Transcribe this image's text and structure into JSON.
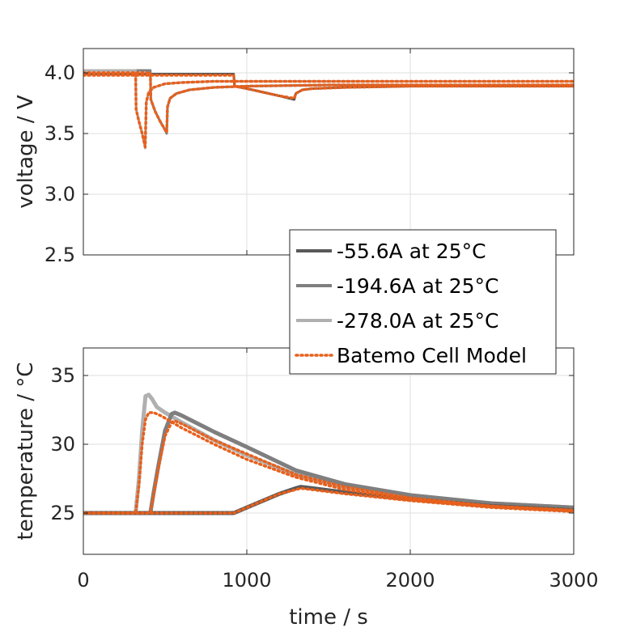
{
  "chart_data": [
    {
      "type": "line",
      "title": "",
      "xlabel": "",
      "ylabel": "voltage / V",
      "xlim": [
        0,
        3000
      ],
      "ylim": [
        2.5,
        4.2
      ],
      "yticks": [
        "2.5",
        "3.0",
        "3.5",
        "4.0"
      ],
      "ytick_values": [
        2.5,
        3.0,
        3.5,
        4.0
      ],
      "grid": true,
      "series": [
        {
          "name": "-55.6A at 25°C",
          "color": "#595959",
          "style": "solid",
          "x": [
            0,
            920,
            925,
            1000,
            1100,
            1200,
            1290,
            1300,
            1340,
            1400,
            1600,
            2000,
            3000
          ],
          "y": [
            3.99,
            3.99,
            3.89,
            3.87,
            3.84,
            3.81,
            3.78,
            3.83,
            3.86,
            3.87,
            3.88,
            3.89,
            3.89
          ]
        },
        {
          "name": "-194.6A at 25°C",
          "color": "#7f7f7f",
          "style": "solid",
          "x": [
            0,
            410,
            413,
            440,
            470,
            500,
            510,
            515,
            530,
            570,
            650,
            800,
            1000,
            1500,
            3000
          ],
          "y": [
            4.02,
            4.02,
            3.78,
            3.68,
            3.6,
            3.53,
            3.5,
            3.72,
            3.79,
            3.83,
            3.86,
            3.88,
            3.89,
            3.9,
            3.9
          ]
        },
        {
          "name": "-278.0A at 25°C",
          "color": "#b0b0b0",
          "style": "solid",
          "x": [
            0,
            320,
            323,
            340,
            360,
            375,
            378,
            385,
            400,
            430,
            500,
            600,
            800,
            1000,
            1500,
            3000
          ],
          "y": [
            4.02,
            4.02,
            3.7,
            3.6,
            3.5,
            3.4,
            3.38,
            3.76,
            3.84,
            3.88,
            3.91,
            3.92,
            3.93,
            3.93,
            3.93,
            3.93
          ]
        },
        {
          "name": "Batemo Cell Model",
          "color": "#e8601c",
          "style": "dotted",
          "x": [
            0,
            320,
            323,
            340,
            360,
            375,
            378,
            385,
            400,
            430,
            500,
            600,
            800,
            1000,
            1500,
            3000
          ],
          "y": [
            4.0,
            4.0,
            3.7,
            3.6,
            3.5,
            3.41,
            3.39,
            3.76,
            3.84,
            3.88,
            3.91,
            3.92,
            3.93,
            3.93,
            3.93,
            3.93
          ]
        },
        {
          "name": "",
          "color": "#e8601c",
          "style": "dotted",
          "x": [
            0,
            410,
            413,
            440,
            470,
            500,
            510,
            515,
            530,
            570,
            650,
            800,
            1000,
            1500,
            3000
          ],
          "y": [
            4.0,
            4.0,
            3.78,
            3.68,
            3.6,
            3.53,
            3.51,
            3.72,
            3.79,
            3.83,
            3.86,
            3.88,
            3.89,
            3.9,
            3.9
          ]
        },
        {
          "name": "",
          "color": "#e8601c",
          "style": "dotted",
          "x": [
            0,
            920,
            925,
            1000,
            1100,
            1200,
            1290,
            1300,
            1340,
            1400,
            1600,
            2000,
            3000
          ],
          "y": [
            3.98,
            3.98,
            3.89,
            3.87,
            3.84,
            3.81,
            3.79,
            3.83,
            3.86,
            3.87,
            3.88,
            3.89,
            3.89
          ]
        }
      ]
    },
    {
      "type": "line",
      "title": "",
      "xlabel": "time / s",
      "ylabel": "temperature / °C",
      "xlim": [
        0,
        3000
      ],
      "ylim": [
        22,
        37
      ],
      "xticks": [
        "0",
        "1000",
        "2000",
        "3000"
      ],
      "xtick_values": [
        0,
        1000,
        2000,
        3000
      ],
      "yticks": [
        "25",
        "30",
        "35"
      ],
      "ytick_values": [
        25,
        30,
        35
      ],
      "grid": true,
      "legend": {
        "placement": "center-right",
        "entries": [
          {
            "label": "-55.6A at 25°C",
            "color": "#595959",
            "style": "solid"
          },
          {
            "label": "-194.6A at 25°C",
            "color": "#7f7f7f",
            "style": "solid"
          },
          {
            "label": "-278.0A at 25°C",
            "color": "#b0b0b0",
            "style": "solid"
          },
          {
            "label": "Batemo Cell Model",
            "color": "#e8601c",
            "style": "dotted"
          }
        ]
      },
      "series": [
        {
          "name": "-278.0A at 25°C",
          "color": "#b0b0b0",
          "style": "solid",
          "x": [
            0,
            320,
            340,
            360,
            380,
            400,
            420,
            450,
            500,
            600,
            800,
            1000,
            1300,
            1600,
            2000,
            2500,
            3000
          ],
          "y": [
            25.0,
            25.0,
            27.5,
            31.0,
            33.5,
            33.6,
            33.3,
            32.7,
            32.3,
            31.6,
            30.3,
            29.2,
            27.8,
            26.9,
            26.2,
            25.7,
            25.4
          ]
        },
        {
          "name": "-194.6A at 25°C",
          "color": "#7f7f7f",
          "style": "solid",
          "x": [
            0,
            410,
            430,
            460,
            500,
            540,
            560,
            600,
            700,
            800,
            1000,
            1300,
            1600,
            2000,
            2500,
            3000
          ],
          "y": [
            25.0,
            25.0,
            26.5,
            28.5,
            31.0,
            32.2,
            32.3,
            32.1,
            31.5,
            30.9,
            29.8,
            28.1,
            27.1,
            26.3,
            25.7,
            25.4
          ]
        },
        {
          "name": "-55.6A at 25°C",
          "color": "#595959",
          "style": "solid",
          "x": [
            0,
            920,
            1000,
            1100,
            1200,
            1300,
            1330,
            1400,
            1600,
            2000,
            2500,
            3000
          ],
          "y": [
            25.0,
            25.0,
            25.4,
            25.9,
            26.4,
            26.8,
            26.9,
            26.8,
            26.5,
            26.0,
            25.5,
            25.2
          ]
        },
        {
          "name": "Batemo Cell Model",
          "color": "#e8601c",
          "style": "dotted",
          "x": [
            0,
            320,
            340,
            360,
            380,
            400,
            430,
            470,
            500,
            600,
            800,
            1000,
            1300,
            1600,
            2000,
            2500,
            3000
          ],
          "y": [
            25.0,
            25.0,
            27.0,
            30.0,
            31.8,
            32.3,
            32.3,
            32.1,
            31.9,
            31.2,
            30.0,
            28.9,
            27.6,
            26.7,
            26.0,
            25.5,
            25.2
          ]
        },
        {
          "name": "",
          "color": "#e8601c",
          "style": "dotted",
          "x": [
            0,
            410,
            430,
            460,
            500,
            540,
            560,
            600,
            700,
            800,
            1000,
            1300,
            1600,
            2000,
            2500,
            3000
          ],
          "y": [
            25.0,
            25.0,
            26.3,
            28.3,
            30.6,
            31.6,
            31.7,
            31.5,
            30.9,
            30.3,
            29.3,
            27.8,
            26.9,
            26.1,
            25.5,
            25.2
          ]
        },
        {
          "name": "",
          "color": "#e8601c",
          "style": "dotted",
          "x": [
            0,
            920,
            1000,
            1100,
            1200,
            1300,
            1330,
            1400,
            1600,
            2000,
            2500,
            3000
          ],
          "y": [
            25.0,
            25.0,
            25.4,
            25.9,
            26.4,
            26.7,
            26.8,
            26.7,
            26.4,
            25.9,
            25.4,
            25.1
          ]
        }
      ]
    }
  ]
}
